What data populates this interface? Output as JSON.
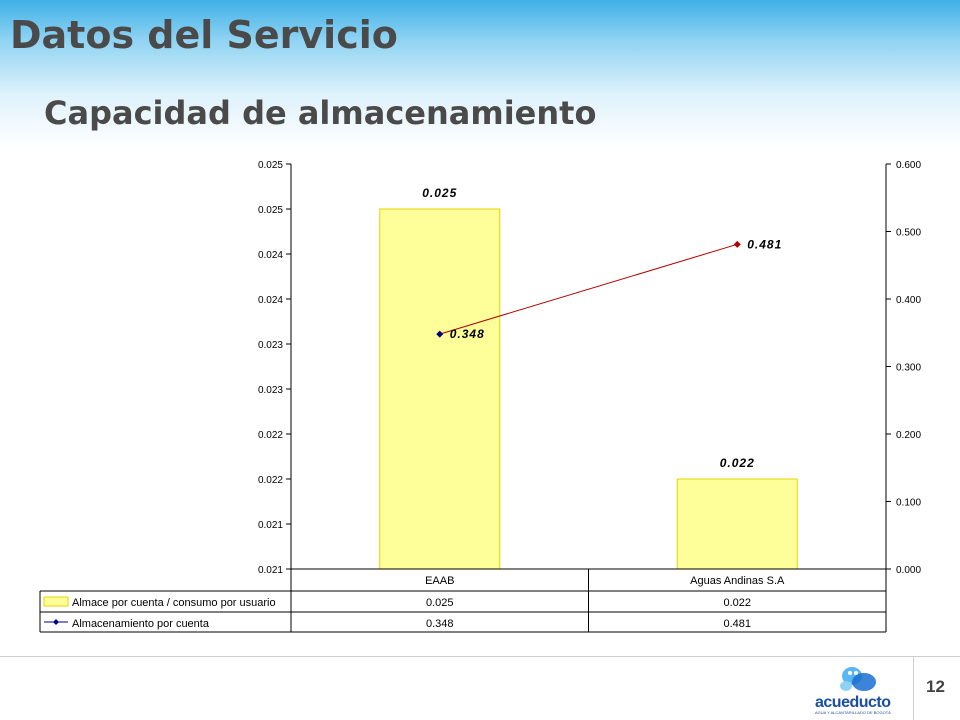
{
  "slide": {
    "title": "Datos del Servicio",
    "subtitle": "Capacidad de almacenamiento",
    "page_number": "12"
  },
  "logo": {
    "text": "acueducto",
    "tagline": "AGUA Y ALCANTARILLADO DE BOGOTÁ"
  },
  "chart_data": {
    "type": "bar",
    "categories": [
      "EAAB",
      "Aguas Andinas S.A"
    ],
    "series": [
      {
        "name": "Almace por cuenta / consumo por usuario",
        "type": "bar",
        "axis": "left",
        "values": [
          0.025,
          0.022
        ],
        "data_labels": [
          "0.025",
          "0.022"
        ],
        "table_values": [
          "0.025",
          "0.022"
        ],
        "color": "#ffff99"
      },
      {
        "name": "Almacenamiento por cuenta",
        "type": "line",
        "axis": "right",
        "values": [
          0.348,
          0.481
        ],
        "data_labels": [
          "0.348",
          "0.481"
        ],
        "table_values": [
          "0.348",
          "0.481"
        ],
        "color": "#b30000",
        "marker_color": "#000080"
      }
    ],
    "left_axis": {
      "ticks": [
        "0.021",
        "0.021",
        "0.022",
        "0.022",
        "0.023",
        "0.023",
        "0.024",
        "0.024",
        "0.025",
        "0.025"
      ],
      "ylim": [
        0.021,
        0.0255
      ]
    },
    "right_axis": {
      "ticks": [
        "0.000",
        "0.100",
        "0.200",
        "0.300",
        "0.400",
        "0.500",
        "0.600"
      ],
      "ylim": [
        0,
        0.6
      ]
    },
    "data_table": true,
    "grid": false
  }
}
